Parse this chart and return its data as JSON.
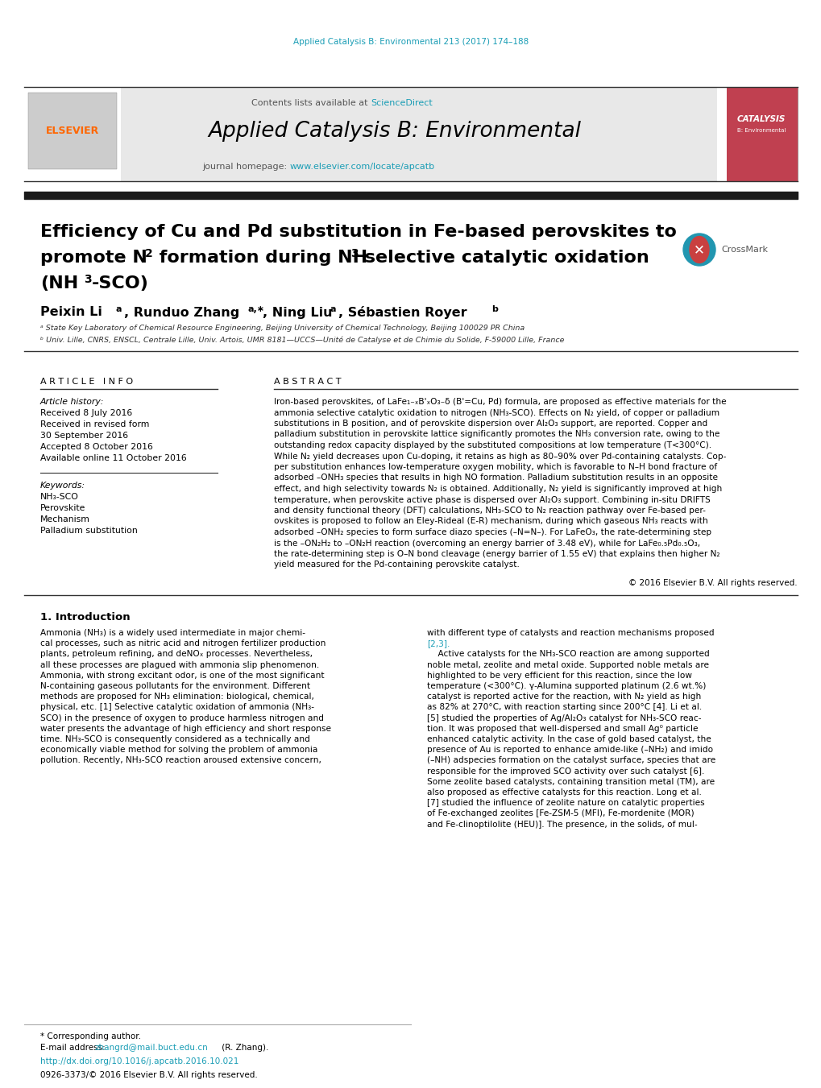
{
  "page_background": "#ffffff",
  "top_citation": "Applied Catalysis B: Environmental 213 (2017) 174–188",
  "top_citation_color": "#1a9db5",
  "header_bg": "#e8e8e8",
  "header_border_color": "#333333",
  "contents_text": "Contents lists available at ",
  "sciencedirect_text": "ScienceDirect",
  "sciencedirect_color": "#1a9db5",
  "journal_title": "Applied Catalysis B: Environmental",
  "journal_title_color": "#000000",
  "journal_homepage_text": "journal homepage: ",
  "journal_url": "www.elsevier.com/locate/apcatb",
  "journal_url_color": "#1a9db5",
  "elsevier_color": "#ff6600",
  "article_title_line1": "Efficiency of Cu and Pd substitution in Fe-based perovskites to",
  "article_title_color": "#000000",
  "affiliation_a": "ᵃ State Key Laboratory of Chemical Resource Engineering, Beijing University of Chemical Technology, Beijing 100029 PR China",
  "affiliation_b": "ᵇ Univ. Lille, CNRS, ENSCL, Centrale Lille, Univ. Artois, UMR 8181—UCCS—Unité de Catalyse et de Chimie du Solide, F-59000 Lille, France",
  "divider_color": "#333333",
  "article_info_title": "A R T I C L E   I N F O",
  "abstract_title": "A B S T R A C T",
  "article_history_label": "Article history:",
  "received_1": "Received 8 July 2016",
  "received_revised": "Received in revised form",
  "received_revised_date": "30 September 2016",
  "accepted": "Accepted 8 October 2016",
  "available": "Available online 11 October 2016",
  "keywords_label": "Keywords:",
  "keyword1": "NH₃-SCO",
  "keyword2": "Perovskite",
  "keyword3": "Mechanism",
  "keyword4": "Palladium substitution",
  "copyright_text": "© 2016 Elsevier B.V. All rights reserved.",
  "section1_title": "1. Introduction",
  "footer_corresponding": "* Corresponding author.",
  "footer_email_label": "E-mail address: ",
  "footer_email": "zhangrd@mail.buct.edu.cn",
  "footer_email_color": "#1a9db5",
  "footer_email_suffix": " (R. Zhang).",
  "footer_doi": "http://dx.doi.org/10.1016/j.apcatb.2016.10.021",
  "footer_doi_color": "#1a9db5",
  "footer_issn": "0926-3373/© 2016 Elsevier B.V. All rights reserved.",
  "section_divider_color": "#333333",
  "text_color": "#000000",
  "small_text_color": "#333333",
  "abstract_lines": [
    "Iron-based perovskites, of LaFe₁₋ₓB'ₓO₃₋δ (B'=Cu, Pd) formula, are proposed as effective materials for the",
    "ammonia selective catalytic oxidation to nitrogen (NH₃-SCO). Effects on N₂ yield, of copper or palladium",
    "substitutions in B position, and of perovskite dispersion over Al₂O₃ support, are reported. Copper and",
    "palladium substitution in perovskite lattice significantly promotes the NH₃ conversion rate, owing to the",
    "outstanding redox capacity displayed by the substituted compositions at low temperature (T<300°C).",
    "While N₂ yield decreases upon Cu-doping, it retains as high as 80–90% over Pd-containing catalysts. Cop-",
    "per substitution enhances low-temperature oxygen mobility, which is favorable to N–H bond fracture of",
    "adsorbed –ONH₃ species that results in high NO formation. Palladium substitution results in an opposite",
    "effect, and high selectivity towards N₂ is obtained. Additionally, N₂ yield is significantly improved at high",
    "temperature, when perovskite active phase is dispersed over Al₂O₃ support. Combining in-situ DRIFTS",
    "and density functional theory (DFT) calculations, NH₃-SCO to N₂ reaction pathway over Fe-based per-",
    "ovskites is proposed to follow an Eley-Rideal (E-R) mechanism, during which gaseous NH₃ reacts with",
    "adsorbed –ONH₂ species to form surface diazo species (–N=N–). For LaFeO₃, the rate-determining step",
    "is the –ON₂H₂ to –ON₂H reaction (overcoming an energy barrier of 3.48 eV), while for LaFe₀.₅Pd₀.₅O₃,",
    "the rate-determining step is O–N bond cleavage (energy barrier of 1.55 eV) that explains then higher N₂",
    "yield measured for the Pd-containing perovskite catalyst."
  ],
  "intro_col1_lines": [
    "Ammonia (NH₃) is a widely used intermediate in major chemi-",
    "cal processes, such as nitric acid and nitrogen fertilizer production",
    "plants, petroleum refining, and deNOₓ processes. Nevertheless,",
    "all these processes are plagued with ammonia slip phenomenon.",
    "Ammonia, with strong excitant odor, is one of the most significant",
    "N-containing gaseous pollutants for the environment. Different",
    "methods are proposed for NH₃ elimination: biological, chemical,",
    "physical, etc. [1] Selective catalytic oxidation of ammonia (NH₃-",
    "SCO) in the presence of oxygen to produce harmless nitrogen and",
    "water presents the advantage of high efficiency and short response",
    "time. NH₃-SCO is consequently considered as a technically and",
    "economically viable method for solving the problem of ammonia",
    "pollution. Recently, NH₃-SCO reaction aroused extensive concern,"
  ],
  "intro_col2_lines": [
    "with different type of catalysts and reaction mechanisms proposed",
    "[2,3].",
    "    Active catalysts for the NH₃-SCO reaction are among supported",
    "noble metal, zeolite and metal oxide. Supported noble metals are",
    "highlighted to be very efficient for this reaction, since the low",
    "temperature (<300°C). γ-Alumina supported platinum (2.6 wt.%)",
    "catalyst is reported active for the reaction, with N₂ yield as high",
    "as 82% at 270°C, with reaction starting since 200°C [4]. Li et al.",
    "[5] studied the properties of Ag/Al₂O₃ catalyst for NH₃-SCO reac-",
    "tion. It was proposed that well-dispersed and small Ag⁰ particle",
    "enhanced catalytic activity. In the case of gold based catalyst, the",
    "presence of Au is reported to enhance amide-like (–NH₂) and imido",
    "(–NH) adspecies formation on the catalyst surface, species that are",
    "responsible for the improved SCO activity over such catalyst [6].",
    "Some zeolite based catalysts, containing transition metal (TM), are",
    "also proposed as effective catalysts for this reaction. Long et al.",
    "[7] studied the influence of zeolite nature on catalytic properties",
    "of Fe-exchanged zeolites [Fe-ZSM-5 (MFI), Fe-mordenite (MOR)",
    "and Fe-clinoptilolite (HEU)]. The presence, in the solids, of mul-"
  ]
}
